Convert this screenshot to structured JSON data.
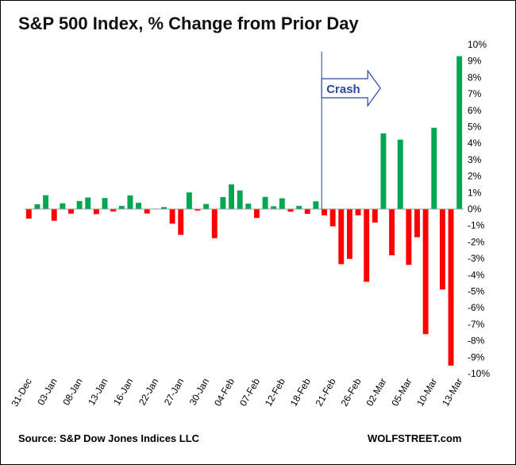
{
  "chart_data": {
    "type": "bar",
    "title": "S&P 500 Index, % Change from Prior Day",
    "source": "Source: S&P Dow Jones Indices LLC",
    "brand": "WOLFSTREET.com",
    "annotation": "Crash",
    "positive_color": "#00A651",
    "negative_color": "#FF0000",
    "annotation_color": "#2E45A8",
    "ylim": [
      -10,
      10
    ],
    "ytick_step": 1,
    "y_unit": "%",
    "grid": false,
    "crash_marker_index": 35,
    "tick_labels": [
      {
        "index": 0,
        "label": "31-Dec"
      },
      {
        "index": 3,
        "label": "03-Jan"
      },
      {
        "index": 6,
        "label": "08-Jan"
      },
      {
        "index": 9,
        "label": "13-Jan"
      },
      {
        "index": 12,
        "label": "16-Jan"
      },
      {
        "index": 15,
        "label": "22-Jan"
      },
      {
        "index": 18,
        "label": "27-Jan"
      },
      {
        "index": 21,
        "label": "30-Jan"
      },
      {
        "index": 24,
        "label": "04-Feb"
      },
      {
        "index": 27,
        "label": "07-Feb"
      },
      {
        "index": 30,
        "label": "12-Feb"
      },
      {
        "index": 33,
        "label": "18-Feb"
      },
      {
        "index": 36,
        "label": "21-Feb"
      },
      {
        "index": 39,
        "label": "26-Feb"
      },
      {
        "index": 42,
        "label": "02-Mar"
      },
      {
        "index": 45,
        "label": "05-Mar"
      },
      {
        "index": 48,
        "label": "10-Mar"
      },
      {
        "index": 51,
        "label": "13-Mar"
      }
    ],
    "values": [
      -0.58,
      0.29,
      0.84,
      -0.71,
      0.35,
      -0.28,
      0.49,
      0.7,
      -0.31,
      0.67,
      -0.15,
      0.19,
      0.83,
      0.38,
      -0.27,
      0.03,
      0.12,
      -0.89,
      -1.57,
      1.01,
      -0.09,
      0.31,
      -1.77,
      0.73,
      1.5,
      1.13,
      0.33,
      -0.54,
      0.74,
      0.17,
      0.65,
      -0.16,
      0.19,
      -0.29,
      0.47,
      -0.38,
      -1.05,
      -3.35,
      -3.03,
      -0.38,
      -4.42,
      -0.82,
      4.6,
      -2.81,
      4.22,
      -3.39,
      -1.71,
      -7.6,
      4.94,
      -4.89,
      -9.51,
      9.29
    ]
  }
}
